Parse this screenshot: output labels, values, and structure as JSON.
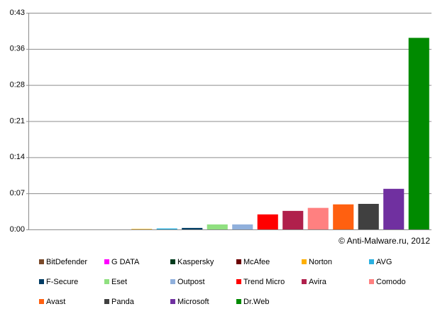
{
  "chart_data": {
    "type": "bar",
    "annotation": "© Anti-Malware.ru, 2012",
    "categories": [
      "BitDefender",
      "G DATA",
      "Kaspersky",
      "McAfee",
      "Norton",
      "AVG",
      "F-Secure",
      "Eset",
      "Outpost",
      "Trend Micro",
      "Avira",
      "Comodo",
      "Avast",
      "Panda",
      "Microsoft",
      "Dr.Web"
    ],
    "values": [
      0,
      0,
      0,
      0,
      0.1,
      0.2,
      0.3,
      1.0,
      1.0,
      3.0,
      3.7,
      4.3,
      5.0,
      5.1,
      8.1,
      38.2
    ],
    "colors": [
      "#7b4a2a",
      "#ff00ff",
      "#003c1e",
      "#6b0000",
      "#ffb000",
      "#2ab0e0",
      "#003c64",
      "#90e080",
      "#90b0dc",
      "#ff0000",
      "#b0204c",
      "#ff8080",
      "#ff6010",
      "#404040",
      "#7030a0",
      "#008a00"
    ],
    "ylim": [
      0,
      43.2
    ],
    "yticks": [
      {
        "value": 0,
        "label": "0:00"
      },
      {
        "value": 7.2,
        "label": "0:07"
      },
      {
        "value": 14.4,
        "label": "0:14"
      },
      {
        "value": 21.6,
        "label": "0:21"
      },
      {
        "value": 28.8,
        "label": "0:28"
      },
      {
        "value": 36,
        "label": "0:36"
      },
      {
        "value": 43.2,
        "label": "0:43"
      }
    ],
    "grid": true
  }
}
